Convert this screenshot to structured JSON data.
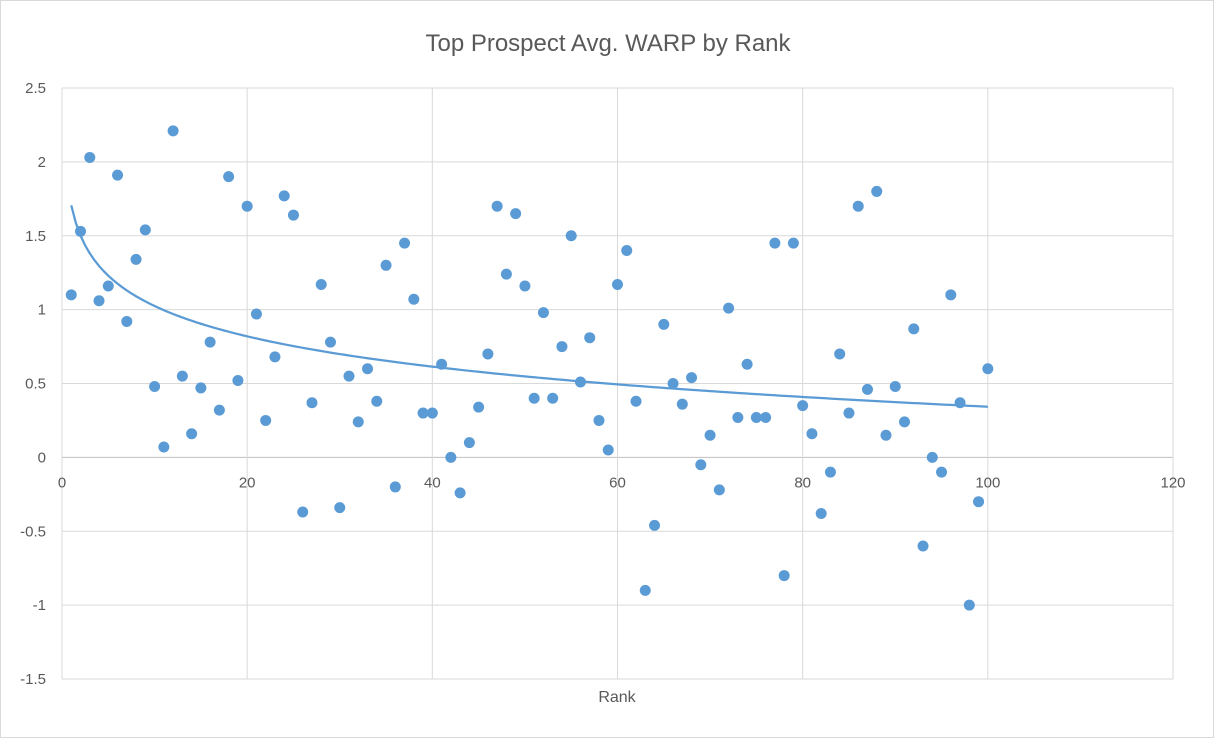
{
  "chart_data": {
    "type": "scatter",
    "title": "Top Prospect Avg. WARP by Rank",
    "xlabel": "Rank",
    "ylabel": "",
    "xlim": [
      0,
      120
    ],
    "ylim": [
      -1.5,
      2.5
    ],
    "xticks": [
      0,
      20,
      40,
      60,
      80,
      100,
      120
    ],
    "yticks": [
      -1.5,
      -1,
      -0.5,
      0,
      0.5,
      1,
      1.5,
      2,
      2.5
    ],
    "xtick_labels": [
      "0",
      "20",
      "40",
      "60",
      "80",
      "100",
      "120"
    ],
    "ytick_labels": [
      "-1.5",
      "-1",
      "-0.5",
      "0",
      "0.5",
      "1",
      "1.5",
      "2",
      "2.5"
    ],
    "grid": true,
    "legend": "none",
    "colors": {
      "points": "#5b9bd5",
      "trendline": "#5b9bd5"
    },
    "series": [
      {
        "x": [
          1,
          2,
          3,
          4,
          5,
          6,
          7,
          8,
          9,
          10,
          11,
          12,
          13,
          14,
          15,
          16,
          17,
          18,
          19,
          20,
          21,
          22,
          23,
          24,
          25,
          26,
          27,
          28,
          29,
          30,
          31,
          32,
          33,
          34,
          35,
          36,
          37,
          38,
          39,
          40,
          41,
          42,
          43,
          44,
          45,
          46,
          47,
          48,
          49,
          50,
          51,
          52,
          53,
          54,
          55,
          56,
          57,
          58,
          59,
          60,
          61,
          62,
          63,
          64,
          65,
          66,
          67,
          68,
          69,
          70,
          71,
          72,
          73,
          74,
          75,
          76,
          77,
          78,
          79,
          80,
          81,
          82,
          83,
          84,
          85,
          86,
          87,
          88,
          89,
          90,
          91,
          92,
          93,
          94,
          95,
          96,
          97,
          98,
          99,
          100
        ],
        "y": [
          1.1,
          1.53,
          2.03,
          1.06,
          1.16,
          1.91,
          0.92,
          1.34,
          1.54,
          0.48,
          0.07,
          2.21,
          0.55,
          0.16,
          0.47,
          0.78,
          0.32,
          1.9,
          0.52,
          1.7,
          0.97,
          0.25,
          0.68,
          1.77,
          1.64,
          -0.37,
          0.37,
          1.17,
          0.78,
          -0.34,
          0.55,
          0.24,
          0.6,
          0.38,
          1.3,
          -0.2,
          1.45,
          1.07,
          0.3,
          0.3,
          0.63,
          0.0,
          -0.24,
          0.1,
          0.34,
          0.7,
          1.7,
          1.24,
          1.65,
          1.16,
          0.4,
          0.98,
          0.4,
          0.75,
          1.5,
          0.51,
          0.81,
          0.25,
          0.05,
          1.17,
          1.4,
          0.38,
          -0.9,
          -0.46,
          0.9,
          0.5,
          0.36,
          0.54,
          -0.05,
          0.15,
          -0.22,
          1.01,
          0.27,
          0.63,
          0.27,
          0.27,
          1.45,
          -0.8,
          1.45,
          0.35,
          0.16,
          -0.38,
          -0.1,
          0.7,
          0.3,
          1.7,
          0.46,
          1.8,
          0.15,
          0.48,
          0.24,
          0.87,
          -0.6,
          0.0,
          -0.1,
          1.1,
          0.37,
          -1.0,
          -0.3,
          0.6
        ]
      }
    ],
    "trendline": {
      "type": "logarithmic",
      "x_range": [
        1,
        100
      ],
      "intercept": 1.706,
      "slope": -0.296
    }
  }
}
